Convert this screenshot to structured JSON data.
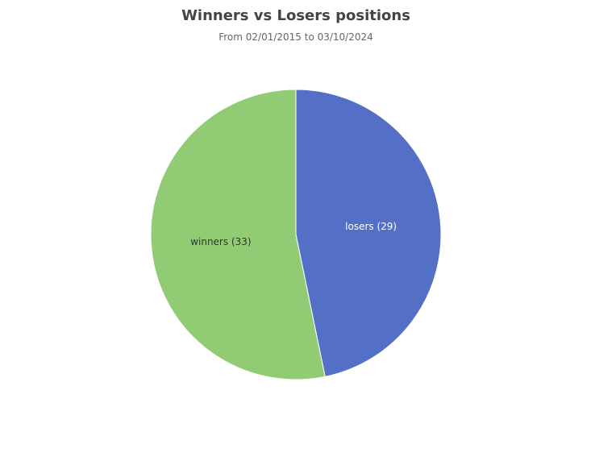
{
  "chart_data": {
    "type": "pie",
    "title": "Winners vs Losers positions",
    "subtitle": "From 02/01/2015 to 03/10/2024",
    "slices": [
      {
        "label": "losers",
        "value": 29,
        "color": "#5470c6",
        "text_label": "losers (29)",
        "label_color": "#ffffff"
      },
      {
        "label": "winners",
        "value": 33,
        "color": "#91cc75",
        "text_label": "winners (33)",
        "label_color": "#333333"
      }
    ],
    "start_angle": "12 o'clock",
    "direction": "clockwise",
    "legend": "none"
  }
}
